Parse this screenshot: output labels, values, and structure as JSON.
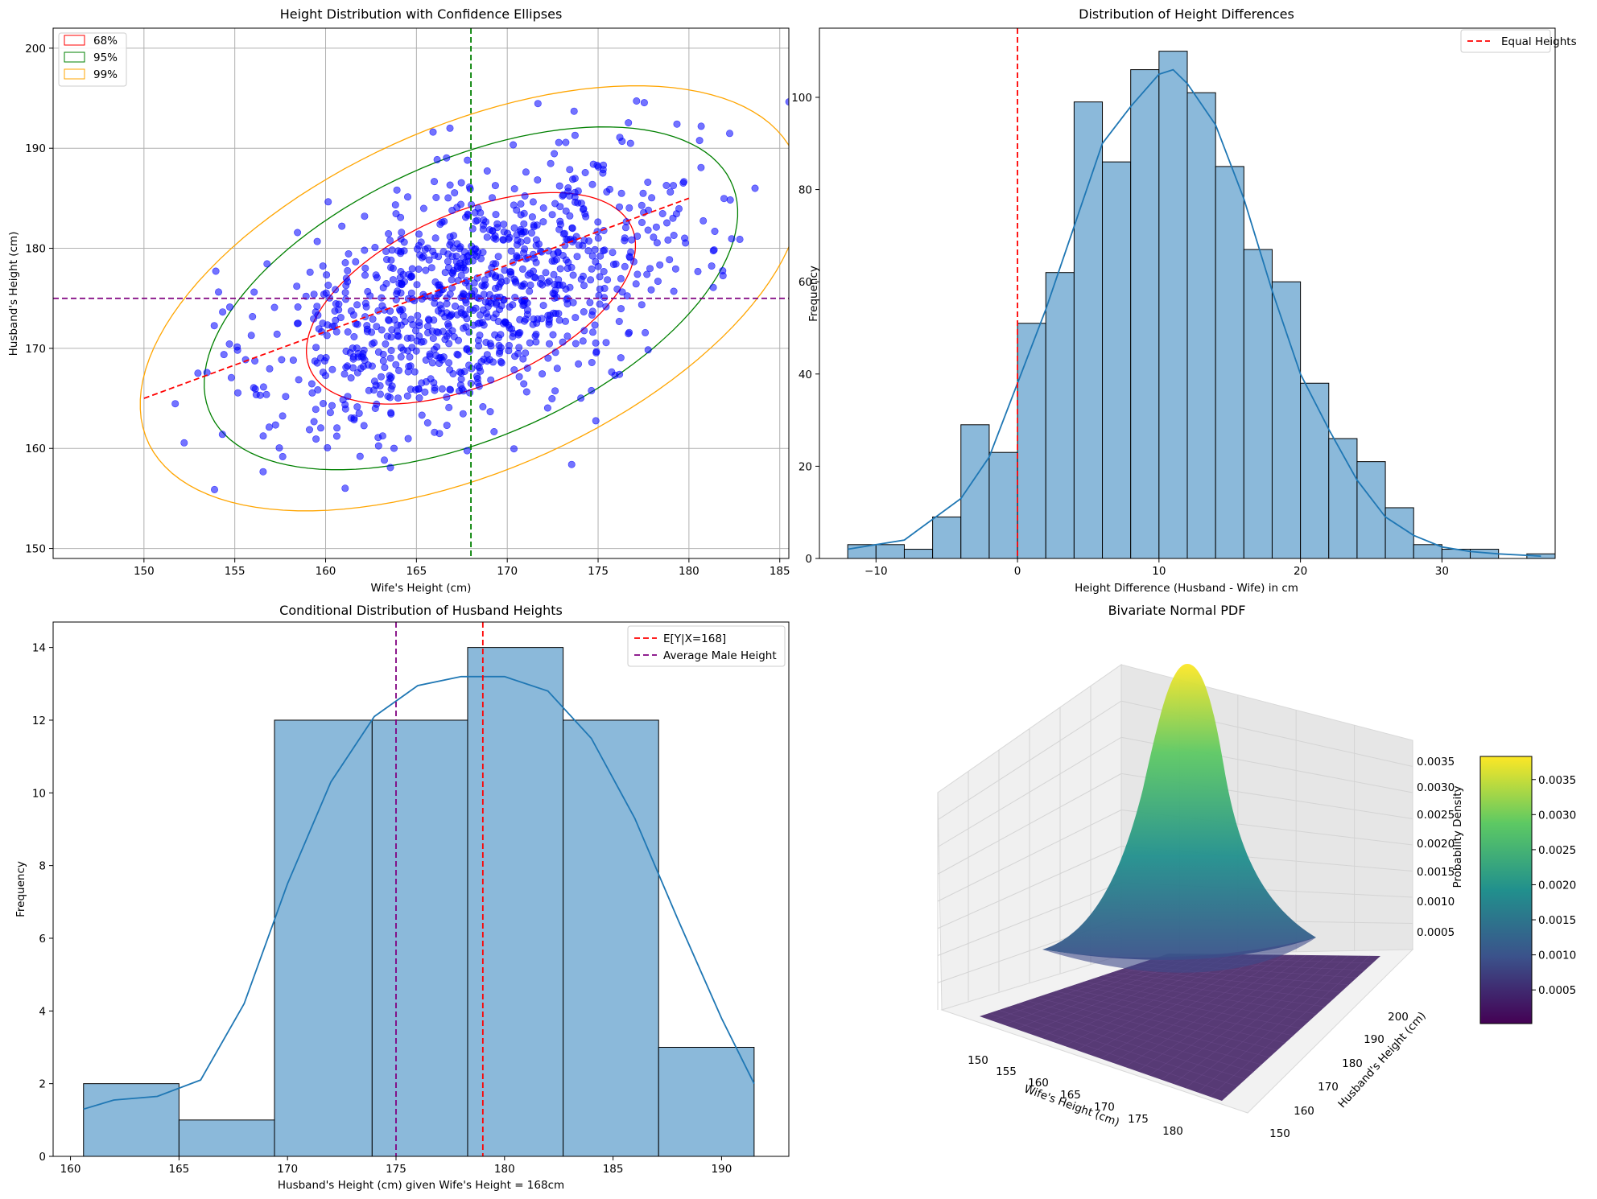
{
  "colors": {
    "scatter": "#0000ff",
    "hist_fill": "#8bb9da",
    "kde": "#1f77b4",
    "red": "#ff0000",
    "green": "#008000",
    "orange": "#ffa500",
    "purple": "#800080",
    "grid": "#b0b0b0"
  },
  "chart_data": [
    {
      "id": "scatter",
      "type": "scatter",
      "title": "Height Distribution with Confidence Ellipses",
      "xlabel": "Wife's Height (cm)",
      "ylabel": "Husband's Height (cm)",
      "xlim": [
        145,
        185.5
      ],
      "ylim": [
        149,
        202
      ],
      "xticks": [
        150,
        155,
        160,
        165,
        170,
        175,
        180,
        185
      ],
      "yticks": [
        150,
        160,
        170,
        180,
        190,
        200
      ],
      "grid": true,
      "legend": {
        "position": "upper-left",
        "entries": [
          "68%",
          "95%",
          "99%"
        ]
      },
      "n_points": 1000,
      "mean": [
        168,
        175
      ],
      "std": [
        6,
        7
      ],
      "correlation": 0.5,
      "ellipses": [
        {
          "label": "68%",
          "color": "red"
        },
        {
          "label": "95%",
          "color": "green"
        },
        {
          "label": "99%",
          "color": "orange"
        }
      ],
      "regression_line": {
        "x": [
          150,
          180
        ],
        "y": [
          165,
          185
        ]
      },
      "vline_x": 168,
      "hline_y": 175
    },
    {
      "id": "hist_diff",
      "type": "bar",
      "title": "Distribution of Height Differences",
      "xlabel": "Height Difference (Husband - Wife) in cm",
      "ylabel": "Frequency",
      "xlim": [
        -14,
        38
      ],
      "ylim": [
        0,
        115
      ],
      "xticks": [
        -10,
        0,
        10,
        20,
        30
      ],
      "yticks": [
        0,
        20,
        40,
        60,
        80,
        100
      ],
      "bin_start": -12,
      "bin_width": 2,
      "values": [
        3,
        3,
        2,
        9,
        29,
        23,
        51,
        62,
        99,
        86,
        106,
        110,
        101,
        85,
        67,
        60,
        38,
        26,
        21,
        11,
        3,
        2,
        2,
        0,
        1
      ],
      "kde": [
        [
          -12,
          2
        ],
        [
          -8,
          4
        ],
        [
          -4,
          13
        ],
        [
          -2,
          22
        ],
        [
          0,
          38
        ],
        [
          2,
          54
        ],
        [
          4,
          72
        ],
        [
          6,
          90
        ],
        [
          8,
          98
        ],
        [
          10,
          105
        ],
        [
          11,
          106
        ],
        [
          12,
          103
        ],
        [
          14,
          94
        ],
        [
          16,
          78
        ],
        [
          18,
          58
        ],
        [
          20,
          40
        ],
        [
          22,
          28
        ],
        [
          24,
          17
        ],
        [
          26,
          9
        ],
        [
          28,
          5
        ],
        [
          30,
          2.5
        ],
        [
          32,
          1.5
        ],
        [
          34,
          1
        ],
        [
          37,
          0.5
        ]
      ],
      "vline_x": 0,
      "legend": {
        "position": "upper-right",
        "entries": [
          "Equal Heights"
        ]
      }
    },
    {
      "id": "hist_cond",
      "type": "bar",
      "title": "Conditional Distribution of Husband Heights",
      "xlabel": "Husband's Height (cm) given Wife's Height = 168cm",
      "ylabel": "Frequency",
      "xlim": [
        159.2,
        193.1
      ],
      "ylim": [
        0,
        14.7
      ],
      "xticks": [
        160,
        165,
        170,
        175,
        180,
        185,
        190
      ],
      "yticks": [
        0,
        2,
        4,
        6,
        8,
        10,
        12,
        14
      ],
      "bin_edges": [
        160.6,
        165.0,
        169.4,
        173.9,
        178.3,
        182.7,
        187.1,
        191.5
      ],
      "values": [
        2,
        1,
        12,
        12,
        14,
        12,
        3
      ],
      "kde": [
        [
          160.6,
          1.3
        ],
        [
          162,
          1.55
        ],
        [
          164,
          1.65
        ],
        [
          166,
          2.1
        ],
        [
          168,
          4.2
        ],
        [
          170,
          7.5
        ],
        [
          172,
          10.3
        ],
        [
          174,
          12.1
        ],
        [
          176,
          12.95
        ],
        [
          178,
          13.2
        ],
        [
          180,
          13.2
        ],
        [
          182,
          12.8
        ],
        [
          184,
          11.5
        ],
        [
          186,
          9.3
        ],
        [
          188,
          6.5
        ],
        [
          190,
          3.8
        ],
        [
          191.5,
          2.0
        ]
      ],
      "vlines": [
        {
          "label": "E[Y|X=168]",
          "x": 179,
          "color": "red"
        },
        {
          "label": "Average Male Height",
          "x": 175,
          "color": "purple"
        }
      ],
      "legend": {
        "position": "upper-right",
        "entries": [
          "E[Y|X=168]",
          "Average Male Height"
        ]
      }
    },
    {
      "id": "surface3d",
      "type": "heatmap",
      "title": "Bivariate Normal PDF",
      "xlabel": "Wife's Height (cm)",
      "ylabel": "Husband's Height (cm)",
      "zlabel": "Probability Density",
      "xticks": [
        150,
        155,
        160,
        165,
        170,
        175,
        180
      ],
      "yticks": [
        150,
        160,
        170,
        180,
        190,
        200
      ],
      "zticks": [
        "0.0005",
        "0.0010",
        "0.0015",
        "0.0020",
        "0.0025",
        "0.0030",
        "0.0035"
      ],
      "colorbar_ticks": [
        "0.0005",
        "0.0010",
        "0.0015",
        "0.0020",
        "0.0025",
        "0.0030",
        "0.0035"
      ],
      "colormap": "viridis",
      "peak_density": 0.0038
    }
  ]
}
